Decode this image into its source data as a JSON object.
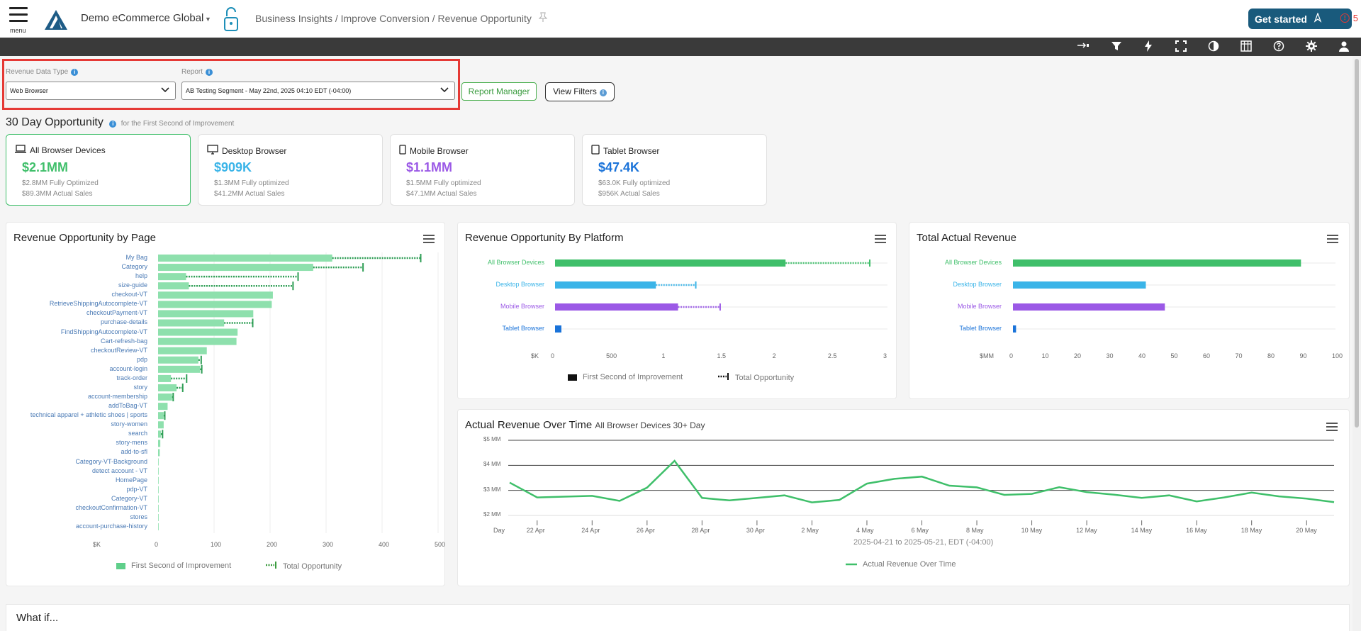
{
  "header": {
    "menu_label": "menu",
    "org_name": "Demo eCommerce Global",
    "breadcrumb": "Business Insights / Improve Conversion / Revenue Opportunity",
    "get_started": "Get started",
    "alert_count": "5"
  },
  "toolbar": {
    "icons": [
      "login-icon",
      "filter-icon",
      "bolt-icon",
      "fullscreen-icon",
      "contrast-icon",
      "columns-icon",
      "help-icon",
      "settings-icon",
      "user-icon"
    ]
  },
  "filters": {
    "revenue_type_label": "Revenue Data Type",
    "revenue_type_value": "Web Browser",
    "report_label": "Report",
    "report_value": "AB Testing Segment - May 22nd, 2025 04:10 EDT (-04:00)",
    "report_manager": "Report Manager",
    "view_filters": "View Filters"
  },
  "opportunity": {
    "title": "30 Day Opportunity",
    "subtitle": "for the First Second of Improvement",
    "cards": [
      {
        "name": "All Browser Devices",
        "value": "$2.1MM",
        "line1": "$2.8MM Fully Optimized",
        "line2": "$89.3MM Actual Sales",
        "color": "#3fbf6a"
      },
      {
        "name": "Desktop Browser",
        "value": "$909K",
        "line1": "$1.3MM Fully optimized",
        "line2": "$41.2MM Actual Sales",
        "color": "#3ab4e8"
      },
      {
        "name": "Mobile Browser",
        "value": "$1.1MM",
        "line1": "$1.5MM Fully optimized",
        "line2": "$47.1MM Actual Sales",
        "color": "#9b59e6"
      },
      {
        "name": "Tablet Browser",
        "value": "$47.4K",
        "line1": "$63.0K Fully optimized",
        "line2": "$956K Actual Sales",
        "color": "#1a73d9"
      }
    ]
  },
  "page_chart": {
    "title": "Revenue Opportunity by Page",
    "unit_label": "$K",
    "legend": [
      "First Second of Improvement",
      "Total Opportunity"
    ]
  },
  "platform_chart": {
    "title": "Revenue Opportunity By Platform",
    "unit_label": "$K",
    "legend": [
      "First Second of Improvement",
      "Total Opportunity"
    ]
  },
  "actual_chart": {
    "title": "Total Actual Revenue",
    "unit_label": "$MM"
  },
  "time_chart": {
    "title": "Actual Revenue Over Time",
    "subtitle": "All Browser Devices 30+ Day",
    "x_first": "Day",
    "date_range": "2025-04-21 to 2025-05-21, EDT (-04:00)",
    "legend": "Actual Revenue Over Time"
  },
  "whatif": {
    "title": "What if..."
  },
  "chart_data": [
    {
      "type": "bar",
      "title": "Revenue Opportunity by Page",
      "categories": [
        "My Bag",
        "Category",
        "help",
        "size-guide",
        "checkout-VT",
        "RetrieveShippingAutocomplete-VT",
        "checkoutPayment-VT",
        "purchase-details",
        "FindShippingAutocomplete-VT",
        "Cart-refresh-bag",
        "checkoutReview-VT",
        "pdp",
        "account-login",
        "track-order",
        "story",
        "account-membership",
        "addToBag-VT",
        "technical apparel + athletic shoes | sports",
        "story-women",
        "search",
        "story-mens",
        "add-to-sfl",
        "Category-VT-Background",
        "detect account - VT",
        "HomePage",
        "pdp-VT",
        "Category-VT",
        "checkoutConfirmation-VT",
        "stores",
        "account-purchase-history"
      ],
      "series": [
        {
          "name": "First Second of Improvement",
          "values": [
            311,
            277,
            50,
            55,
            205,
            203,
            170,
            118,
            142,
            140,
            87,
            72,
            75,
            23,
            33,
            25,
            17,
            10,
            10,
            5,
            4,
            3,
            1,
            1,
            1,
            1,
            0.5,
            0.5,
            0.3,
            0.3
          ]
        },
        {
          "name": "Total Opportunity",
          "values": [
            469,
            366,
            250,
            241,
            205,
            203,
            170,
            169,
            142,
            140,
            87,
            77,
            78,
            51,
            44,
            27,
            17,
            12,
            10,
            8,
            5,
            3,
            1,
            1,
            1,
            1,
            0.5,
            0.5,
            0.3,
            0.3
          ]
        }
      ],
      "xlabel": "$K",
      "xlim": [
        0,
        500
      ],
      "xticks": [
        0,
        100,
        200,
        300,
        400,
        500
      ]
    },
    {
      "type": "bar",
      "title": "Revenue Opportunity By Platform",
      "categories": [
        "All Browser Devices",
        "Desktop Browser",
        "Mobile Browser",
        "Tablet Browser"
      ],
      "colors": [
        "#3fbf6a",
        "#3ab4e8",
        "#9b59e6",
        "#1a73d9"
      ],
      "series": [
        {
          "name": "First Second of Improvement",
          "values": [
            2.08,
            0.91,
            1.11,
            0.047
          ]
        },
        {
          "name": "Total Opportunity",
          "values": [
            2.84,
            1.27,
            1.49,
            0.063
          ]
        }
      ],
      "xlabel": "$K",
      "xlim": [
        0,
        3
      ],
      "xtick_labels": [
        "0",
        "500",
        "1",
        "1.5",
        "2",
        "2.5",
        "3"
      ]
    },
    {
      "type": "bar",
      "title": "Total Actual Revenue",
      "categories": [
        "All Browser Devices",
        "Desktop Browser",
        "Mobile Browser",
        "Tablet Browser"
      ],
      "colors": [
        "#3fbf6a",
        "#3ab4e8",
        "#9b59e6",
        "#1a73d9"
      ],
      "values": [
        89.3,
        41.2,
        47.1,
        0.96
      ],
      "xlabel": "$MM",
      "xlim": [
        0,
        100
      ],
      "xticks": [
        0,
        10,
        20,
        30,
        40,
        50,
        60,
        70,
        80,
        90,
        100
      ]
    },
    {
      "type": "line",
      "title": "Actual Revenue Over Time",
      "x": [
        "Apr 21",
        "Apr 22",
        "Apr 23",
        "Apr 24",
        "Apr 25",
        "Apr 26",
        "Apr 27",
        "Apr 28",
        "Apr 29",
        "Apr 30",
        "May 1",
        "May 2",
        "May 3",
        "May 4",
        "May 5",
        "May 6",
        "May 7",
        "May 8",
        "May 9",
        "May 10",
        "May 11",
        "May 12",
        "May 13",
        "May 14",
        "May 15",
        "May 16",
        "May 17",
        "May 18",
        "May 19",
        "May 20",
        "May 21"
      ],
      "series": [
        {
          "name": "Actual Revenue Over Time",
          "values": [
            3.31,
            2.72,
            2.75,
            2.78,
            2.58,
            3.11,
            4.18,
            2.7,
            2.6,
            2.7,
            2.8,
            2.52,
            2.62,
            3.27,
            3.46,
            3.55,
            3.19,
            3.12,
            2.82,
            2.86,
            3.13,
            2.93,
            2.83,
            2.7,
            2.8,
            2.56,
            2.72,
            2.91,
            2.76,
            2.67,
            2.53
          ]
        }
      ],
      "yticks": [
        "$2 MM",
        "$3 MM",
        "$4 MM",
        "$5 MM"
      ],
      "xtick_labels": [
        "Day",
        "22 Apr",
        "24 Apr",
        "26 Apr",
        "28 Apr",
        "30 Apr",
        "2 May",
        "4 May",
        "6 May",
        "8 May",
        "10 May",
        "12 May",
        "14 May",
        "16 May",
        "18 May",
        "20 May"
      ],
      "ylim": [
        2,
        5
      ]
    }
  ]
}
